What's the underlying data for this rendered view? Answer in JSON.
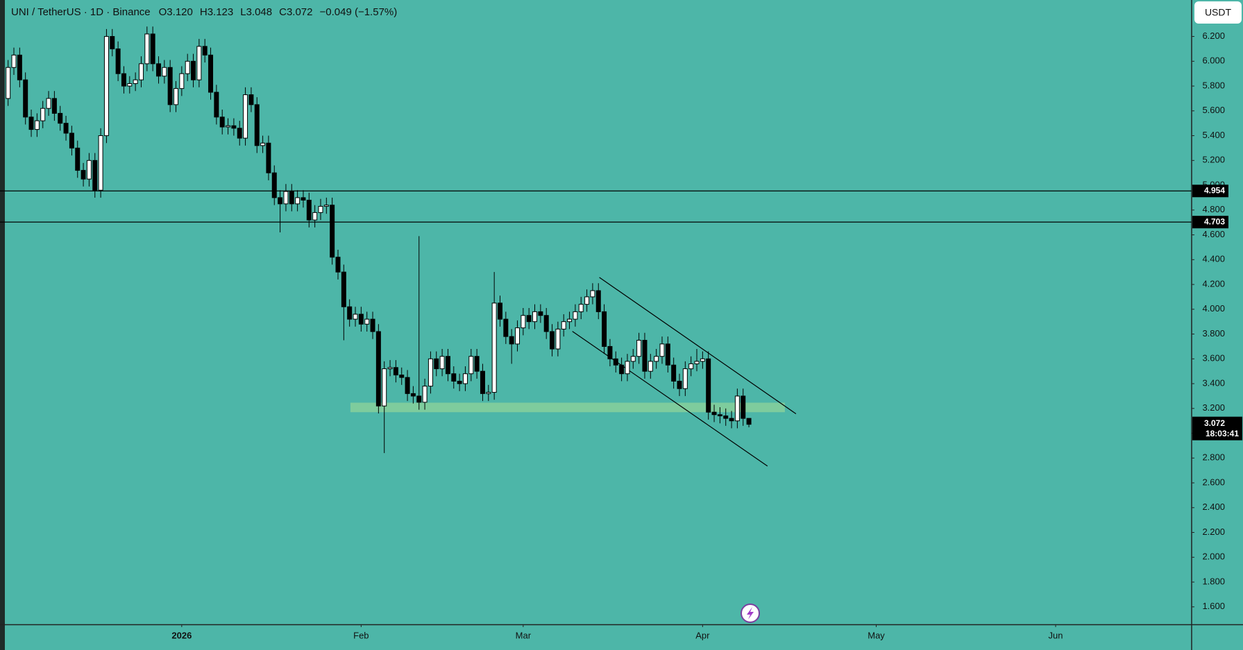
{
  "chart_data": {
    "type": "candlestick",
    "title": "UNI / TetherUS · 1D · Binance",
    "ohlc": [
      "O3.120",
      "H3.123",
      "L3.048",
      "C3.072"
    ],
    "change": "−0.049 (−1.57%)",
    "currency": "USDT",
    "countdown": "18:03:41",
    "background": "#4db6a8",
    "up_color": "#ffffff",
    "down_color": "#000000",
    "grid": false,
    "levels": [
      4.954,
      4.703
    ],
    "xlim": [
      -31.4,
      174.5
    ],
    "xticks": [
      {
        "value": 0,
        "label": "2026"
      },
      {
        "value": 31,
        "label": "Feb"
      },
      {
        "value": 59,
        "label": "Mar"
      },
      {
        "value": 90,
        "label": "Apr"
      },
      {
        "value": 120,
        "label": "May"
      },
      {
        "value": 151,
        "label": "Jun"
      }
    ],
    "ylim": [
      1.459,
      6.494
    ],
    "yticks": [
      {
        "value": 1.6,
        "label": "1.600"
      },
      {
        "value": 1.8,
        "label": "1.800"
      },
      {
        "value": 2.0,
        "label": "2.000"
      },
      {
        "value": 2.2,
        "label": "2.200"
      },
      {
        "value": 2.4,
        "label": "2.400"
      },
      {
        "value": 2.6,
        "label": "2.600"
      },
      {
        "value": 2.8,
        "label": "2.800"
      },
      {
        "value": 3.0,
        "label": "3.000"
      },
      {
        "value": 3.2,
        "label": "3.200"
      },
      {
        "value": 3.4,
        "label": "3.400"
      },
      {
        "value": 3.6,
        "label": "3.600"
      },
      {
        "value": 3.8,
        "label": "3.800"
      },
      {
        "value": 4.0,
        "label": "4.000"
      },
      {
        "value": 4.2,
        "label": "4.200"
      },
      {
        "value": 4.4,
        "label": "4.400"
      },
      {
        "value": 4.6,
        "label": "4.600"
      },
      {
        "value": 4.8,
        "label": "4.800"
      },
      {
        "value": 5.0,
        "label": "5.000"
      },
      {
        "value": 5.2,
        "label": "5.200"
      },
      {
        "value": 5.4,
        "label": "5.400"
      },
      {
        "value": 5.6,
        "label": "5.600"
      },
      {
        "value": 5.8,
        "label": "5.800"
      },
      {
        "value": 6.0,
        "label": "6.000"
      },
      {
        "value": 6.2,
        "label": "6.200"
      }
    ],
    "x": [
      -30,
      -29,
      -28,
      -27,
      -26,
      -25,
      -24,
      -23,
      -22,
      -21,
      -20,
      -19,
      -18,
      -17,
      -16,
      -15,
      -14,
      -13,
      -12,
      -11,
      -10,
      -9,
      -8,
      -7,
      -6,
      -5,
      -4,
      -3,
      -2,
      -1,
      0,
      1,
      2,
      3,
      4,
      5,
      6,
      7,
      8,
      9,
      10,
      11,
      12,
      13,
      14,
      15,
      16,
      17,
      18,
      19,
      20,
      21,
      22,
      23,
      24,
      25,
      26,
      27,
      28,
      29,
      30,
      31,
      32,
      33,
      34,
      35,
      36,
      37,
      38,
      39,
      40,
      41,
      42,
      43,
      44,
      45,
      46,
      47,
      48,
      49,
      50,
      51,
      52,
      53,
      54,
      55,
      56,
      57,
      58,
      59,
      60,
      61,
      62,
      63,
      64,
      65,
      66,
      67,
      68,
      69,
      70,
      71,
      72,
      73,
      74,
      75,
      76,
      77,
      78,
      79,
      80,
      81,
      82,
      83,
      84,
      85,
      86,
      87,
      88,
      89,
      90,
      91,
      92,
      93,
      94,
      95,
      96,
      97,
      98
    ],
    "open": [
      5.7,
      5.95,
      6.05,
      5.85,
      5.55,
      5.45,
      5.52,
      5.62,
      5.7,
      5.58,
      5.5,
      5.42,
      5.3,
      5.12,
      5.05,
      5.2,
      4.96,
      5.4,
      6.2,
      6.1,
      5.9,
      5.8,
      5.82,
      5.85,
      5.98,
      6.22,
      5.98,
      5.88,
      5.95,
      5.65,
      5.78,
      5.9,
      6.0,
      5.85,
      6.12,
      6.05,
      5.75,
      5.55,
      5.47,
      5.48,
      5.46,
      5.38,
      5.73,
      5.65,
      5.32,
      5.34,
      5.1,
      4.9,
      4.85,
      4.95,
      4.85,
      4.9,
      4.88,
      4.72,
      4.78,
      4.83,
      4.84,
      4.42,
      4.3,
      4.02,
      3.92,
      3.96,
      3.88,
      3.92,
      3.82,
      3.22,
      3.52,
      3.53,
      3.47,
      3.45,
      3.32,
      3.3,
      3.25,
      3.38,
      3.6,
      3.52,
      3.62,
      3.48,
      3.42,
      3.4,
      3.48,
      3.62,
      3.5,
      3.32,
      3.33,
      4.05,
      3.92,
      3.78,
      3.72,
      3.85,
      3.95,
      3.9,
      3.98,
      3.95,
      3.82,
      3.68,
      3.84,
      3.9,
      3.92,
      3.98,
      4.04,
      4.1,
      4.15,
      3.98,
      3.7,
      3.6,
      3.55,
      3.48,
      3.58,
      3.62,
      3.75,
      3.5,
      3.58,
      3.62,
      3.72,
      3.55,
      3.42,
      3.36,
      3.52,
      3.56,
      3.58,
      3.6,
      3.17,
      3.15,
      3.14,
      3.12,
      3.1,
      3.3,
      3.12
    ],
    "high": [
      6.01,
      6.11,
      6.11,
      5.91,
      5.61,
      5.58,
      5.68,
      5.76,
      5.76,
      5.64,
      5.56,
      5.48,
      5.36,
      5.18,
      5.26,
      5.26,
      5.46,
      6.26,
      6.26,
      6.16,
      5.96,
      5.88,
      5.91,
      6.04,
      6.28,
      6.28,
      6.04,
      6.01,
      6.01,
      5.84,
      5.96,
      6.06,
      6.06,
      6.18,
      6.18,
      6.11,
      5.81,
      5.61,
      5.54,
      5.54,
      5.52,
      5.79,
      5.79,
      5.71,
      5.4,
      5.4,
      5.16,
      4.96,
      5.01,
      5.01,
      4.96,
      4.96,
      4.94,
      4.84,
      4.89,
      4.9,
      4.9,
      4.48,
      4.36,
      4.08,
      4.02,
      4.02,
      3.98,
      3.98,
      3.88,
      3.58,
      3.59,
      3.59,
      3.53,
      3.51,
      3.38,
      4.59,
      3.44,
      3.66,
      3.66,
      3.68,
      3.68,
      3.54,
      3.48,
      3.54,
      3.68,
      3.68,
      3.56,
      3.39,
      4.3,
      4.11,
      3.98,
      3.84,
      3.91,
      4.01,
      4.01,
      4.04,
      4.04,
      4.01,
      3.88,
      3.9,
      3.96,
      3.98,
      4.04,
      4.1,
      4.16,
      4.21,
      4.21,
      4.04,
      3.76,
      3.66,
      3.61,
      3.64,
      3.68,
      3.81,
      3.81,
      3.64,
      3.68,
      3.78,
      3.78,
      3.61,
      3.48,
      3.58,
      3.62,
      3.68,
      3.66,
      3.66,
      3.23,
      3.21,
      3.2,
      3.18,
      3.36,
      3.36,
      3.123
    ],
    "low": [
      5.64,
      5.89,
      5.79,
      5.49,
      5.39,
      5.39,
      5.46,
      5.56,
      5.52,
      5.44,
      5.36,
      5.24,
      5.06,
      4.99,
      4.99,
      4.9,
      4.9,
      5.34,
      6.04,
      5.84,
      5.74,
      5.74,
      5.76,
      5.79,
      5.92,
      5.92,
      5.82,
      5.82,
      5.59,
      5.59,
      5.72,
      5.84,
      5.79,
      5.79,
      5.99,
      5.69,
      5.49,
      5.41,
      5.41,
      5.4,
      5.32,
      5.32,
      5.59,
      5.26,
      5.26,
      5.04,
      4.84,
      4.62,
      4.79,
      4.79,
      4.79,
      4.82,
      4.66,
      4.66,
      4.72,
      4.77,
      4.36,
      4.24,
      3.75,
      3.86,
      3.86,
      3.82,
      3.82,
      3.76,
      3.16,
      2.84,
      3.46,
      3.41,
      3.39,
      3.26,
      3.24,
      3.19,
      3.19,
      3.32,
      3.46,
      3.46,
      3.42,
      3.36,
      3.34,
      3.34,
      3.42,
      3.44,
      3.26,
      3.26,
      3.27,
      3.86,
      3.72,
      3.56,
      3.66,
      3.79,
      3.84,
      3.84,
      3.89,
      3.76,
      3.62,
      3.62,
      3.78,
      3.84,
      3.86,
      3.92,
      3.98,
      4.04,
      3.92,
      3.64,
      3.54,
      3.49,
      3.42,
      3.42,
      3.52,
      3.56,
      3.44,
      3.44,
      3.52,
      3.56,
      3.49,
      3.36,
      3.3,
      3.3,
      3.46,
      3.5,
      3.52,
      3.11,
      3.09,
      3.08,
      3.06,
      3.04,
      3.04,
      3.06,
      3.048
    ],
    "close": [
      5.95,
      6.05,
      5.85,
      5.55,
      5.45,
      5.52,
      5.62,
      5.7,
      5.58,
      5.5,
      5.42,
      5.3,
      5.12,
      5.05,
      5.2,
      4.96,
      5.4,
      6.2,
      6.1,
      5.9,
      5.8,
      5.82,
      5.85,
      5.98,
      6.22,
      5.98,
      5.88,
      5.95,
      5.65,
      5.78,
      5.9,
      6.0,
      5.85,
      6.12,
      6.05,
      5.75,
      5.55,
      5.47,
      5.48,
      5.46,
      5.38,
      5.73,
      5.65,
      5.32,
      5.34,
      5.1,
      4.9,
      4.85,
      4.95,
      4.85,
      4.9,
      4.88,
      4.72,
      4.78,
      4.83,
      4.84,
      4.42,
      4.3,
      4.02,
      3.92,
      3.96,
      3.88,
      3.92,
      3.82,
      3.22,
      3.52,
      3.53,
      3.47,
      3.45,
      3.32,
      3.3,
      3.25,
      3.38,
      3.6,
      3.52,
      3.62,
      3.48,
      3.42,
      3.4,
      3.48,
      3.62,
      3.5,
      3.32,
      3.33,
      4.05,
      3.92,
      3.78,
      3.72,
      3.85,
      3.95,
      3.9,
      3.98,
      3.95,
      3.82,
      3.68,
      3.84,
      3.9,
      3.92,
      3.98,
      4.04,
      4.1,
      4.15,
      3.98,
      3.7,
      3.6,
      3.55,
      3.48,
      3.58,
      3.62,
      3.75,
      3.5,
      3.58,
      3.62,
      3.72,
      3.55,
      3.42,
      3.36,
      3.52,
      3.56,
      3.58,
      3.6,
      3.17,
      3.15,
      3.14,
      3.12,
      3.1,
      3.3,
      3.12,
      3.072
    ]
  }
}
